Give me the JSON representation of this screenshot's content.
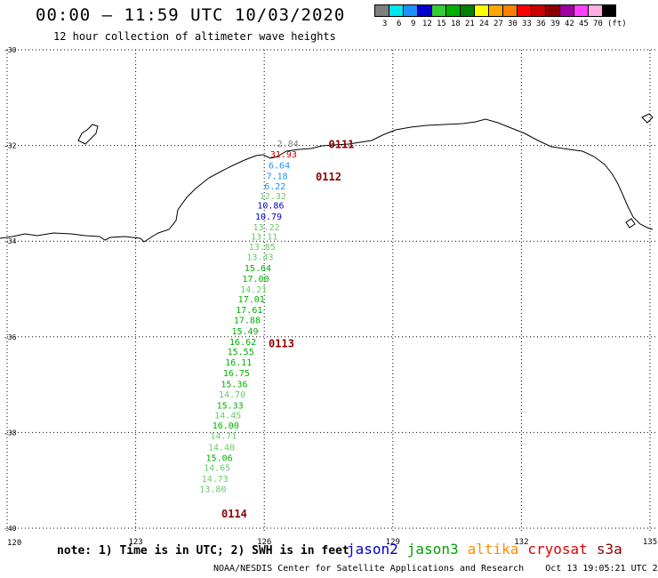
{
  "header": {
    "title": "00:00 – 11:59 UTC 10/03/2020",
    "subtitle": "12 hour collection of altimeter wave heights"
  },
  "legend": {
    "swatches": [
      "#7f7f7f",
      "#00e5ee",
      "#1e90ff",
      "#0000cd",
      "#32cd32",
      "#00b000",
      "#008000",
      "#ffff00",
      "#ffa500",
      "#ff7f00",
      "#ff0000",
      "#c80000",
      "#8b0000",
      "#a000a0",
      "#ff40ff",
      "#ffb0e0",
      "#000000"
    ],
    "labels": [
      "3",
      "6",
      "9",
      "12",
      "15",
      "18",
      "21",
      "24",
      "27",
      "30",
      "33",
      "36",
      "39",
      "42",
      "45",
      "70",
      "(ft)"
    ]
  },
  "axes": {
    "lon_labels": [
      "120",
      "123",
      "126",
      "129",
      "132",
      "135"
    ],
    "lat_labels": [
      "-30",
      "-32",
      "-34",
      "-36",
      "-38",
      "-40"
    ]
  },
  "passes": [
    {
      "label": "0111",
      "lon": 127.5,
      "lat": -32.05,
      "color": "#8b0000"
    },
    {
      "label": "0112",
      "lon": 127.2,
      "lat": -32.73,
      "color": "#8b0000"
    },
    {
      "label": "0113",
      "lon": 126.1,
      "lat": -36.22,
      "color": "#8b0000"
    },
    {
      "label": "0114",
      "lon": 125.0,
      "lat": -39.78,
      "color": "#8b0000"
    }
  ],
  "observations": [
    {
      "value": "2.84",
      "lon": 126.55,
      "lat": -32.03,
      "color": "#808080"
    },
    {
      "value": "31.93",
      "lon": 126.45,
      "lat": -32.25,
      "color": "#c80000"
    },
    {
      "value": "6.64",
      "lon": 126.35,
      "lat": -32.48,
      "color": "#1e90ff"
    },
    {
      "value": "7.18",
      "lon": 126.3,
      "lat": -32.7,
      "color": "#1e90ff"
    },
    {
      "value": "6.22",
      "lon": 126.25,
      "lat": -32.92,
      "color": "#1e90ff"
    },
    {
      "value": "12.32",
      "lon": 126.2,
      "lat": -33.12,
      "color": "#66cc66"
    },
    {
      "value": "10.86",
      "lon": 126.15,
      "lat": -33.32,
      "color": "#0000cd"
    },
    {
      "value": "10.79",
      "lon": 126.1,
      "lat": -33.55,
      "color": "#0000cd"
    },
    {
      "value": "13.22",
      "lon": 126.05,
      "lat": -33.77,
      "color": "#66cc66"
    },
    {
      "value": "13.11",
      "lon": 126.0,
      "lat": -33.97,
      "color": "#66cc66"
    },
    {
      "value": "13.85",
      "lon": 125.95,
      "lat": -34.18,
      "color": "#66cc66"
    },
    {
      "value": "13.43",
      "lon": 125.9,
      "lat": -34.4,
      "color": "#66cc66"
    },
    {
      "value": "15.64",
      "lon": 125.85,
      "lat": -34.63,
      "color": "#00b000"
    },
    {
      "value": "17.00",
      "lon": 125.8,
      "lat": -34.85,
      "color": "#00b000"
    },
    {
      "value": "14.21",
      "lon": 125.75,
      "lat": -35.07,
      "color": "#66cc66"
    },
    {
      "value": "17.01",
      "lon": 125.7,
      "lat": -35.28,
      "color": "#00b000"
    },
    {
      "value": "17.61",
      "lon": 125.65,
      "lat": -35.5,
      "color": "#00b000"
    },
    {
      "value": "17.88",
      "lon": 125.6,
      "lat": -35.72,
      "color": "#00b000"
    },
    {
      "value": "15.49",
      "lon": 125.55,
      "lat": -35.95,
      "color": "#00b000"
    },
    {
      "value": "16.62",
      "lon": 125.5,
      "lat": -36.17,
      "color": "#00b000"
    },
    {
      "value": "15.55",
      "lon": 125.45,
      "lat": -36.38,
      "color": "#00b000"
    },
    {
      "value": "16.11",
      "lon": 125.4,
      "lat": -36.6,
      "color": "#00b000"
    },
    {
      "value": "16.75",
      "lon": 125.35,
      "lat": -36.82,
      "color": "#00b000"
    },
    {
      "value": "15.36",
      "lon": 125.3,
      "lat": -37.05,
      "color": "#00b000"
    },
    {
      "value": "14.70",
      "lon": 125.25,
      "lat": -37.27,
      "color": "#66cc66"
    },
    {
      "value": "15.33",
      "lon": 125.2,
      "lat": -37.5,
      "color": "#00b000"
    },
    {
      "value": "14.45",
      "lon": 125.15,
      "lat": -37.7,
      "color": "#66cc66"
    },
    {
      "value": "16.00",
      "lon": 125.1,
      "lat": -37.92,
      "color": "#00b000"
    },
    {
      "value": "14.71",
      "lon": 125.05,
      "lat": -38.13,
      "color": "#66cc66"
    },
    {
      "value": "14.40",
      "lon": 125.0,
      "lat": -38.37,
      "color": "#66cc66"
    },
    {
      "value": "15.06",
      "lon": 124.95,
      "lat": -38.6,
      "color": "#00b000"
    },
    {
      "value": "14.65",
      "lon": 124.9,
      "lat": -38.8,
      "color": "#66cc66"
    },
    {
      "value": "14.73",
      "lon": 124.85,
      "lat": -39.03,
      "color": "#66cc66"
    },
    {
      "value": "13.80",
      "lon": 124.8,
      "lat": -39.25,
      "color": "#66cc66"
    }
  ],
  "footer": {
    "note": "note:  1) Time is in UTC;  2) SWH is in feet",
    "satellites": [
      {
        "name": "jason2",
        "color": "#0000cd"
      },
      {
        "name": "jason3",
        "color": "#00a000"
      },
      {
        "name": "altika",
        "color": "#ff8c00"
      },
      {
        "name": "cryosat",
        "color": "#e00000"
      },
      {
        "name": "s3a",
        "color": "#8b0000"
      }
    ],
    "credit": "NOAA/NESDIS Center for Satellite Applications and Research",
    "timestamp": "Oct 13 19:05:21 UTC 2020"
  }
}
